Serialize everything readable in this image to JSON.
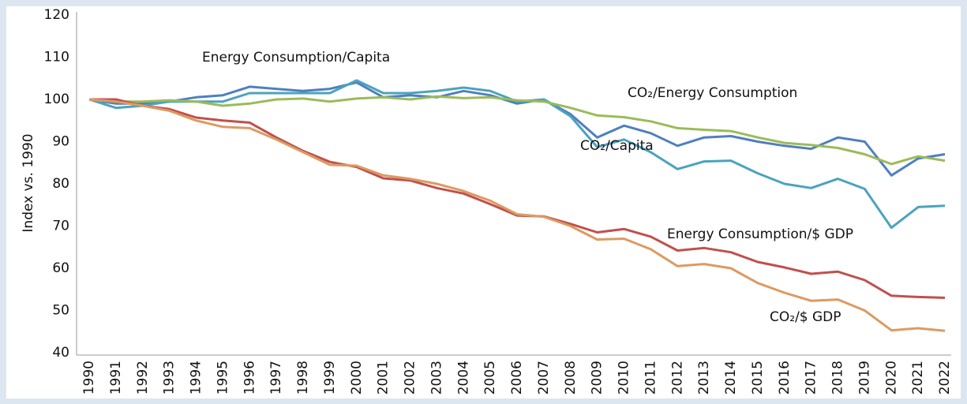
{
  "chart_data": {
    "type": "line",
    "y_label": "Index vs. 1990",
    "categories": [
      "1990",
      "1991",
      "1992",
      "1993",
      "1994",
      "1995",
      "1996",
      "1997",
      "1998",
      "1999",
      "2000",
      "2001",
      "2002",
      "2003",
      "2004",
      "2005",
      "2006",
      "2007",
      "2008",
      "2009",
      "2010",
      "2011",
      "2012",
      "2013",
      "2014",
      "2015",
      "2016",
      "2017",
      "2018",
      "2019",
      "2020",
      "2021",
      "2022"
    ],
    "series": [
      {
        "name": "Energy Consumption/Capita",
        "color": "#4f7fbf",
        "values": [
          100,
          99,
          99,
          99.5,
          100.5,
          101,
          103,
          102.5,
          102,
          102.5,
          104,
          100.5,
          101,
          100.5,
          102,
          101,
          99,
          100,
          96.5,
          91,
          93.8,
          92,
          89,
          91,
          91.3,
          90,
          89,
          88.3,
          91,
          90,
          82,
          86,
          87
        ]
      },
      {
        "name": "CO₂/Capita",
        "color": "#4ba3bf",
        "values": [
          100,
          98,
          98.5,
          99.5,
          99.5,
          99.5,
          101.5,
          101.5,
          101.5,
          101.5,
          104.5,
          101.5,
          101.5,
          102,
          102.8,
          102,
          99.5,
          100,
          96,
          88.7,
          90.5,
          87.5,
          83.5,
          85.3,
          85.5,
          82.5,
          80,
          79,
          81.2,
          78.8,
          69.6,
          74.5,
          74.8
        ]
      },
      {
        "name": "CO₂/Energy Consumption",
        "color": "#9bbb59",
        "values": [
          100,
          99.5,
          99.5,
          99.8,
          99.5,
          98.5,
          99,
          100,
          100.2,
          99.5,
          100.2,
          100.5,
          100,
          100.7,
          100.3,
          100.5,
          99.8,
          99.5,
          98,
          96.2,
          95.8,
          94.8,
          93.2,
          92.8,
          92.5,
          91,
          89.7,
          89.2,
          88.5,
          87,
          84.7,
          86.5,
          85.5
        ]
      },
      {
        "name": "Energy Consumption/$ GDP",
        "color": "#c0504d",
        "values": [
          100,
          100,
          98.5,
          97.7,
          95.7,
          95,
          94.5,
          91,
          87.8,
          85.2,
          84,
          81.3,
          80.8,
          79,
          77.7,
          75.2,
          72.5,
          72.3,
          70.5,
          68.5,
          69.3,
          67.5,
          64.2,
          64.8,
          63.8,
          61.5,
          60.2,
          58.7,
          59.2,
          57.2,
          53.5,
          53.2,
          53
        ]
      },
      {
        "name": "CO₂/$ GDP",
        "color": "#dd9a62",
        "values": [
          100,
          99.5,
          98.5,
          97.3,
          95,
          93.5,
          93.2,
          90.5,
          87.5,
          84.5,
          84.3,
          82,
          81.2,
          80,
          78.3,
          76,
          72.8,
          72.2,
          70,
          66.8,
          67,
          64.5,
          60.5,
          61,
          60,
          56.5,
          54.2,
          52.3,
          52.6,
          50,
          45.3,
          45.8,
          45.2
        ]
      }
    ],
    "ylim": [
      40,
      120
    ],
    "yticks": [
      40,
      50,
      60,
      70,
      80,
      90,
      100,
      110,
      120
    ],
    "grid": false
  }
}
